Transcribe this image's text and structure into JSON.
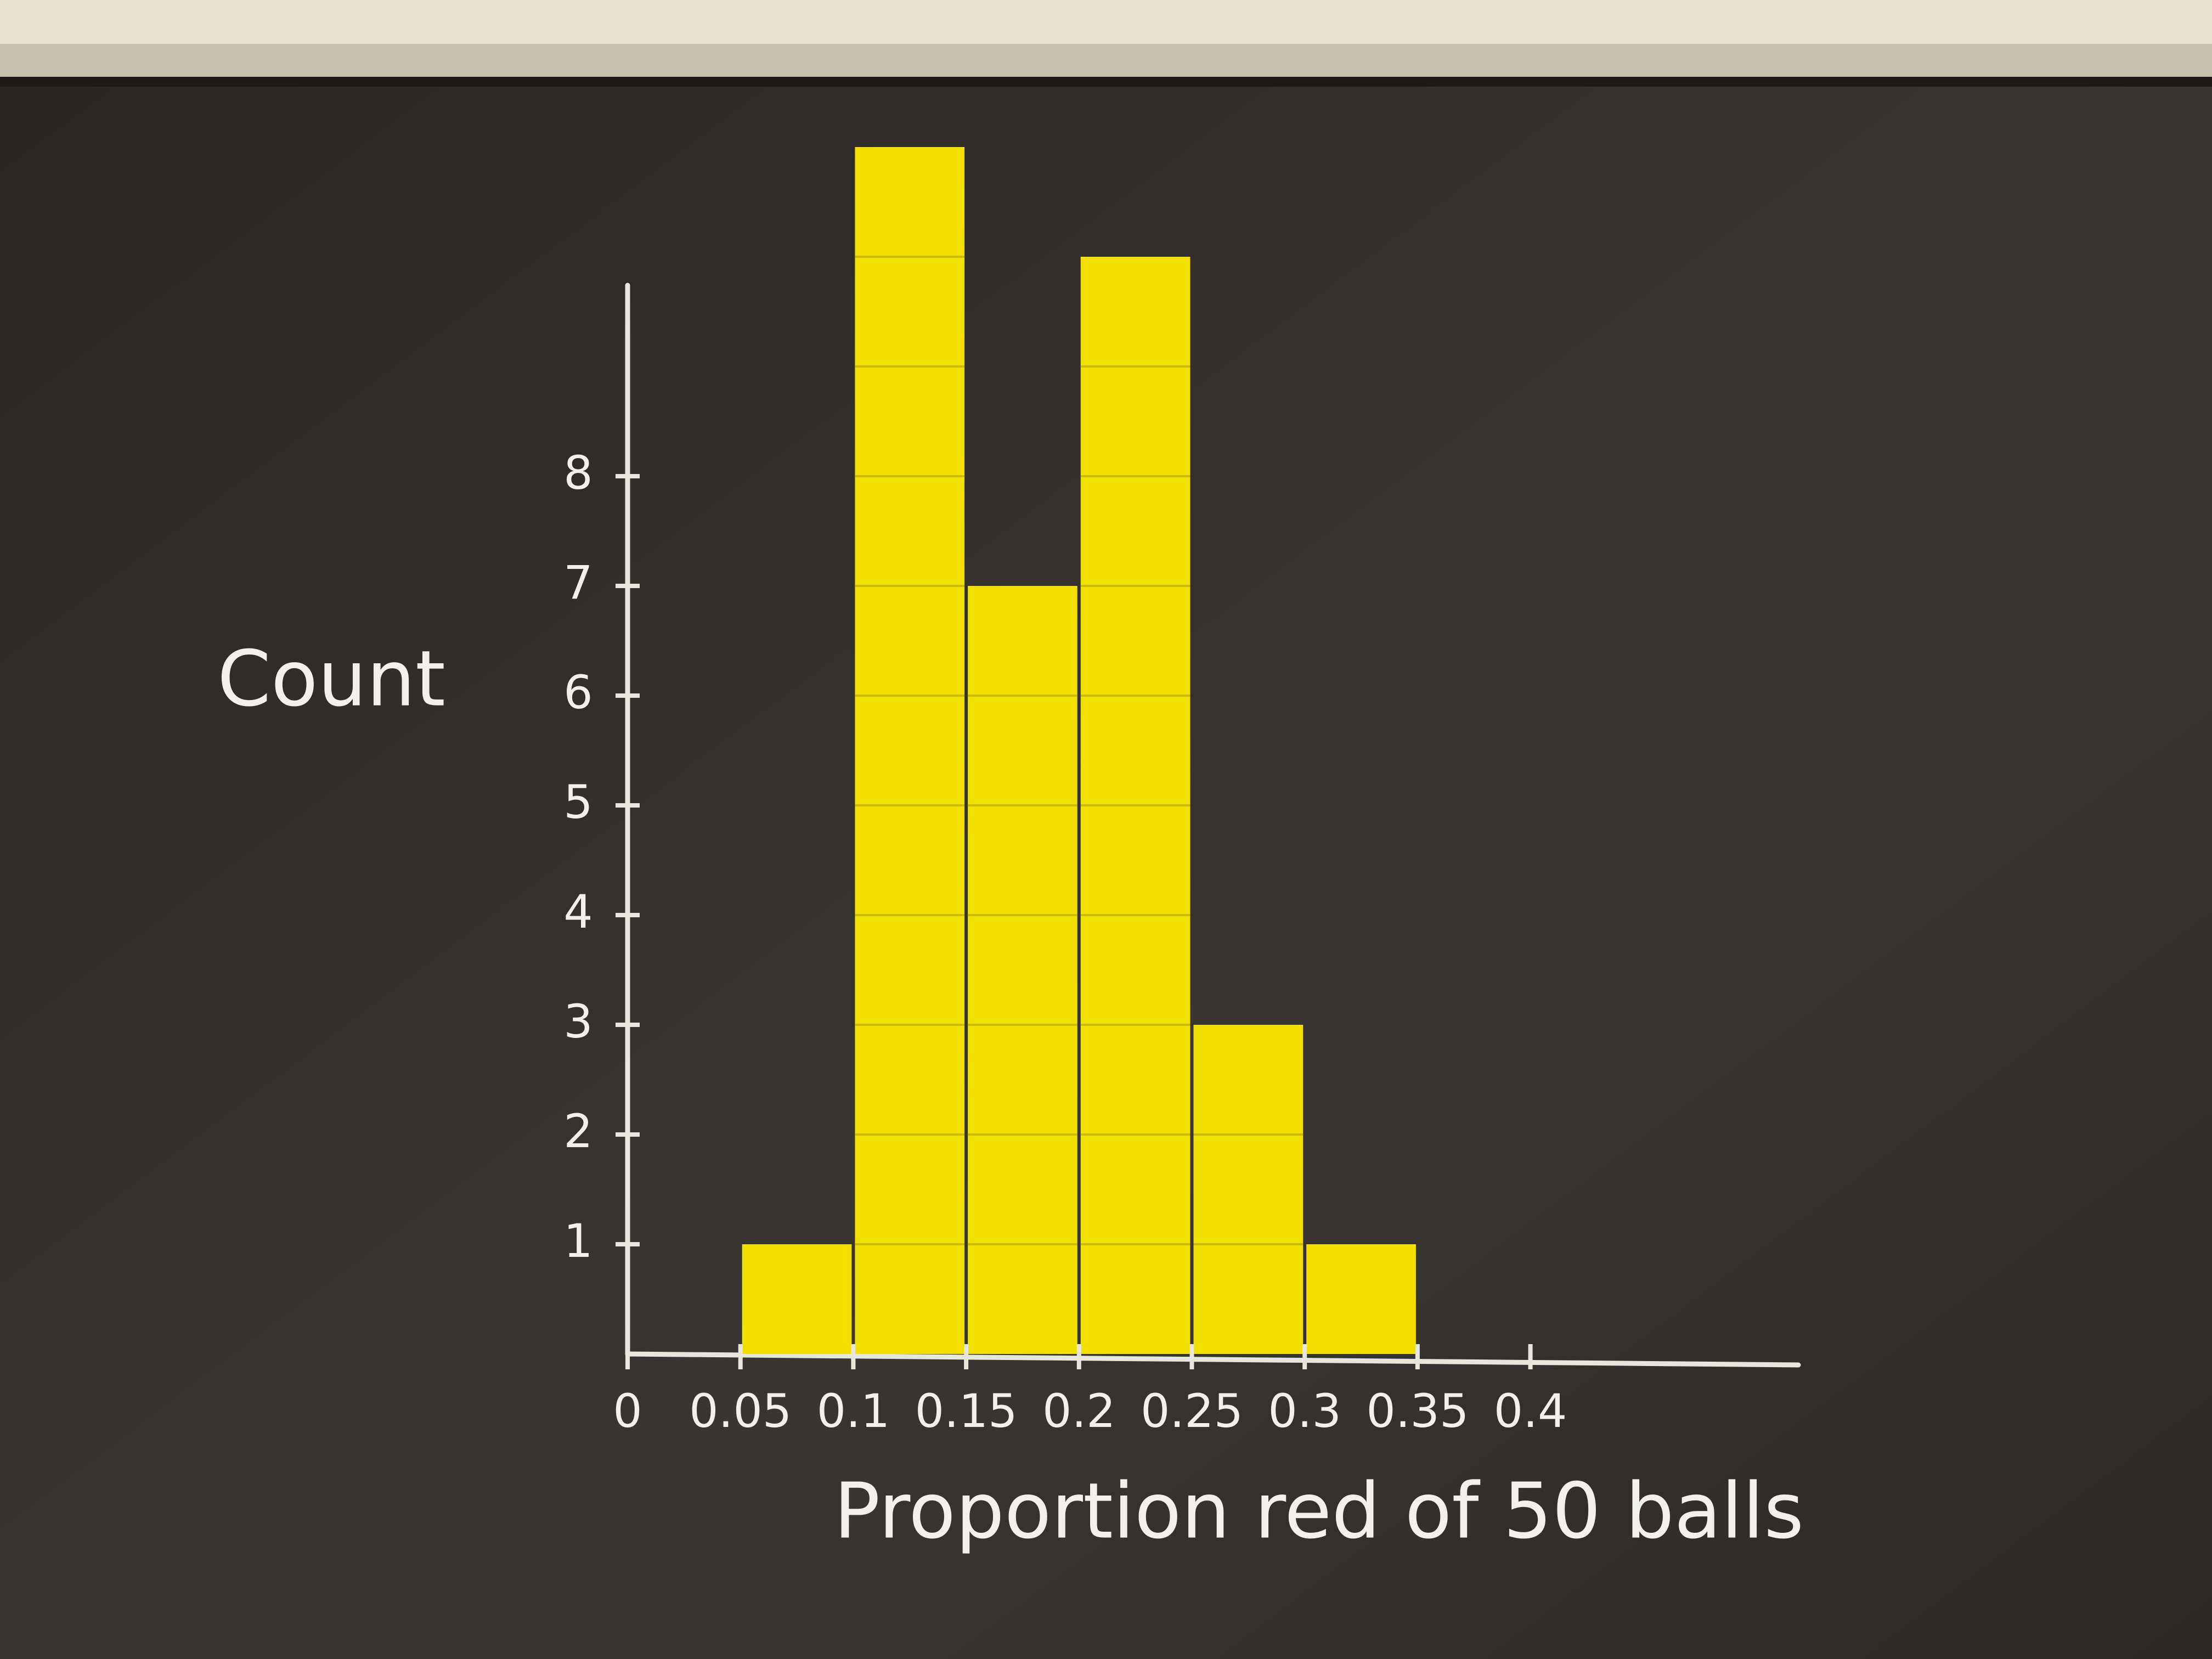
{
  "chart_data": {
    "type": "histogram",
    "x_label": "Proportion red of 50 balls",
    "y_label": "Count",
    "bins": [
      0.05,
      0.1,
      0.15,
      0.2,
      0.25,
      0.3,
      0.35
    ],
    "values": [
      1,
      11,
      7,
      10,
      3,
      1
    ],
    "color": "#f2e000",
    "xlim": [
      0,
      0.5
    ],
    "xticks": [
      0,
      0.05,
      0.1,
      0.15,
      0.2,
      0.25,
      0.3,
      0.35,
      0.4
    ],
    "ylim": [
      0,
      12
    ],
    "yticks": [
      1,
      2,
      3,
      4,
      5,
      6,
      7,
      8
    ]
  }
}
